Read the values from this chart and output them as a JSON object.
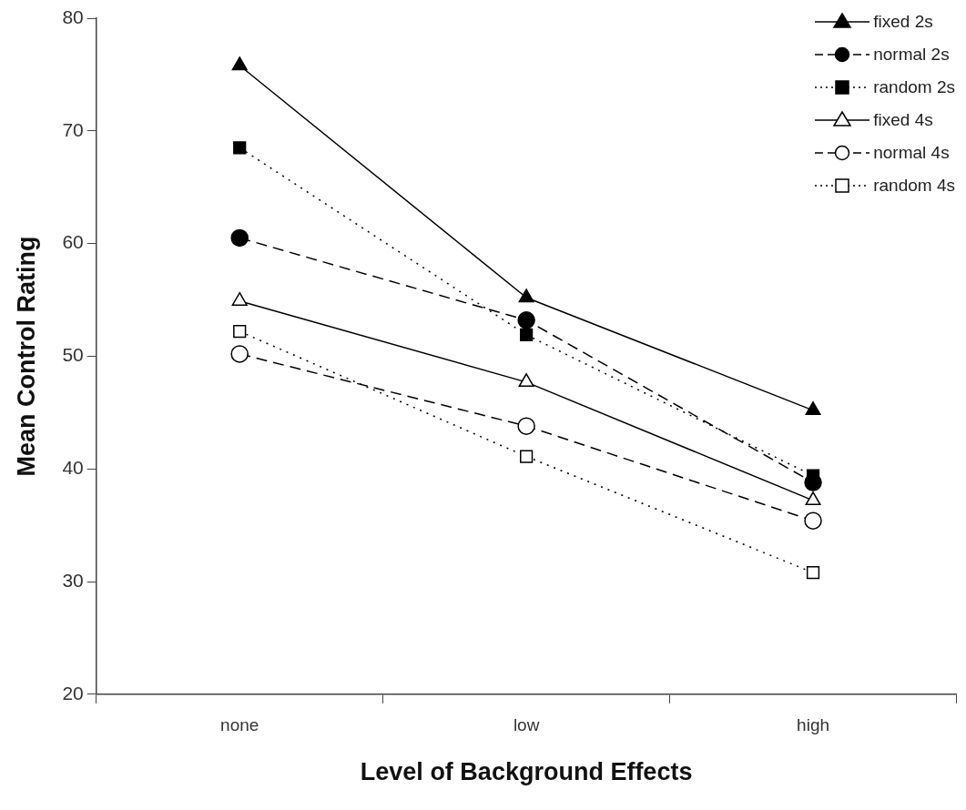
{
  "chart_data": {
    "type": "line",
    "xlabel": "Level of Background Effects",
    "ylabel": "Mean Control Rating",
    "categories": [
      "none",
      "low",
      "high"
    ],
    "ylim": [
      20,
      80
    ],
    "yticks": [
      20,
      30,
      40,
      50,
      60,
      70,
      80
    ],
    "grid": false,
    "legend": "top right",
    "series": [
      {
        "name": "fixed 2s",
        "color": "#000000",
        "marker": "triangle",
        "line_style": "solid",
        "values": [
          75.8,
          55.2,
          45.2
        ]
      },
      {
        "name": "normal 2s",
        "color": "#000000",
        "marker": "circle",
        "line_style": "dashed",
        "values": [
          60.5,
          53.2,
          38.8
        ]
      },
      {
        "name": "random 2s",
        "color": "#000000",
        "marker": "square",
        "line_style": "dotted",
        "values": [
          68.5,
          51.9,
          39.4
        ]
      },
      {
        "name": "fixed 4s",
        "color": "#000000",
        "marker": "triangle",
        "line_style": "solid",
        "colors": [
          "#ffffff",
          "#ffffff",
          "#ffffff"
        ],
        "values": [
          54.9,
          47.7,
          37.2
        ]
      },
      {
        "name": "normal 4s",
        "color": "#000000",
        "marker": "circle",
        "line_style": "dashed",
        "colors": [
          "#ffffff",
          "#ffffff",
          "#ffffff"
        ],
        "values": [
          50.2,
          43.8,
          35.4
        ]
      },
      {
        "name": "random 4s",
        "color": "#000000",
        "marker": "square",
        "line_style": "dotted",
        "colors": [
          "#ffffff",
          "#ffffff",
          "#ffffff"
        ],
        "values": [
          52.2,
          41.1,
          30.8
        ]
      }
    ]
  }
}
